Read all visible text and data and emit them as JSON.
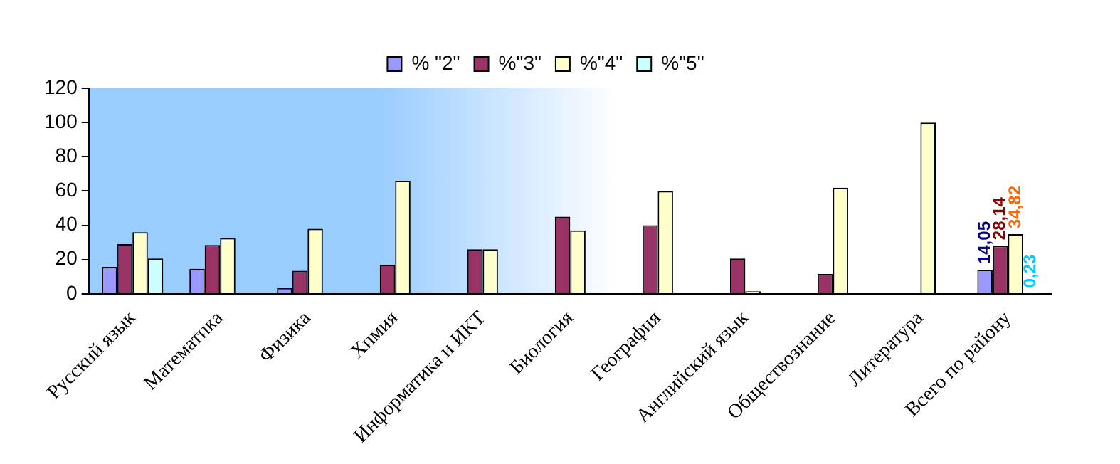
{
  "chart_data": {
    "type": "bar",
    "categories": [
      "Русский язык",
      "Математика",
      "Физика",
      "Химия",
      "Информатика и ИКТ",
      "Биология",
      "География",
      "Английский язык",
      "Обществознание",
      "Литература",
      "Всего по району"
    ],
    "series": [
      {
        "name": "% \"2\"",
        "color": "#9999ff",
        "values": [
          15.7,
          14.6,
          3.4,
          null,
          null,
          null,
          null,
          null,
          null,
          null,
          14.05
        ],
        "value_labels": [
          null,
          null,
          null,
          null,
          null,
          null,
          null,
          null,
          null,
          null,
          "14,05"
        ]
      },
      {
        "name": "%\"3\"",
        "color": "#993366",
        "values": [
          29,
          28.5,
          13.5,
          17,
          26,
          45,
          40,
          20.6,
          11.6,
          null,
          28.14
        ],
        "value_labels": [
          null,
          null,
          null,
          null,
          null,
          null,
          null,
          null,
          null,
          null,
          "28,14"
        ]
      },
      {
        "name": "%\"4\"",
        "color": "#ffffcc",
        "values": [
          36,
          32.6,
          38,
          66,
          26,
          37,
          60,
          1.5,
          62,
          100,
          34.82
        ],
        "value_labels": [
          null,
          null,
          null,
          null,
          null,
          null,
          null,
          null,
          null,
          null,
          "34,82"
        ]
      },
      {
        "name": "%\"5\"",
        "color": "#ccffff",
        "values": [
          20.6,
          null,
          null,
          null,
          null,
          null,
          null,
          null,
          null,
          null,
          0.23
        ],
        "value_labels": [
          null,
          null,
          null,
          null,
          null,
          null,
          null,
          null,
          null,
          null,
          "0,23"
        ]
      }
    ],
    "ylim": [
      0,
      120
    ],
    "yticks": [
      0,
      20,
      40,
      60,
      80,
      100,
      120
    ],
    "grid": false,
    "legend": "top"
  }
}
